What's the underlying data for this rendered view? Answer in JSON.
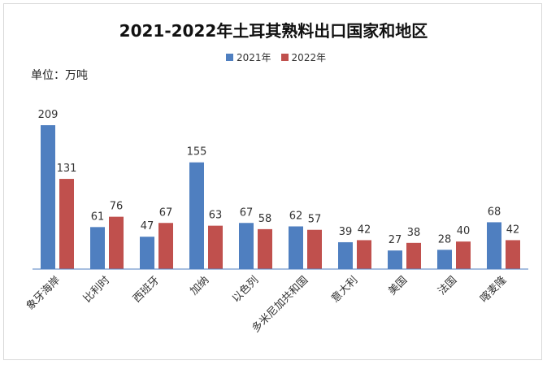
{
  "chart_data": {
    "type": "bar",
    "title": "2021-2022年土耳其熟料出口国家和地区",
    "unit_label": "单位：万吨",
    "categories": [
      "象牙海岸",
      "比利时",
      "西班牙",
      "加纳",
      "以色列",
      "多米尼加共和国",
      "意大利",
      "美国",
      "法国",
      "喀麦隆"
    ],
    "series": [
      {
        "name": "2021年",
        "color": "#4f7fc0",
        "values": [
          209,
          61,
          47,
          155,
          67,
          62,
          39,
          27,
          28,
          68
        ]
      },
      {
        "name": "2022年",
        "color": "#c0504d",
        "values": [
          131,
          76,
          67,
          63,
          58,
          57,
          42,
          38,
          40,
          42
        ]
      }
    ],
    "ylim": [
      0,
      230
    ],
    "grid": false,
    "legend_position": "top-center",
    "data_labels": true
  }
}
